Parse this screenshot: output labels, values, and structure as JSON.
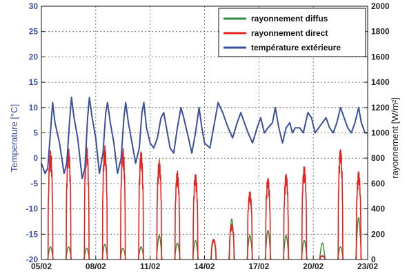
{
  "chart_data": {
    "type": "line",
    "xlabel": "",
    "ylabel_left": "Temperature [°C]",
    "ylabel_right": "rayonnement [W/m²]",
    "x_ticks": [
      "05/02",
      "08/02",
      "11/02",
      "14/02",
      "17/02",
      "20/02",
      "23/02"
    ],
    "x_range_days": [
      5,
      23
    ],
    "ylim_left": [
      -20,
      30
    ],
    "yticks_left": [
      -20,
      -15,
      -10,
      -5,
      0,
      5,
      10,
      15,
      20,
      25,
      30
    ],
    "ylim_right": [
      0,
      2000
    ],
    "yticks_right": [
      0,
      200,
      400,
      600,
      800,
      1000,
      1200,
      1400,
      1600,
      1800,
      2000
    ],
    "grid": true,
    "legend_position": "top-right",
    "colors": {
      "diffus": "#2e8b3a",
      "direct": "#e8231f",
      "temperature": "#3a4fa0"
    },
    "series": [
      {
        "name": "rayonnement diffus",
        "axis": "right",
        "daily_peaks": [
          {
            "day": 5.5,
            "value": 100
          },
          {
            "day": 6.5,
            "value": 100
          },
          {
            "day": 7.5,
            "value": 90
          },
          {
            "day": 8.5,
            "value": 120
          },
          {
            "day": 9.5,
            "value": 90
          },
          {
            "day": 10.5,
            "value": 100
          },
          {
            "day": 11.5,
            "value": 190
          },
          {
            "day": 12.5,
            "value": 130
          },
          {
            "day": 13.5,
            "value": 150
          },
          {
            "day": 14.5,
            "value": 160
          },
          {
            "day": 15.5,
            "value": 320
          },
          {
            "day": 16.5,
            "value": 190
          },
          {
            "day": 17.5,
            "value": 230
          },
          {
            "day": 18.5,
            "value": 190
          },
          {
            "day": 19.5,
            "value": 150
          },
          {
            "day": 20.5,
            "value": 130
          },
          {
            "day": 21.5,
            "value": 100
          },
          {
            "day": 22.5,
            "value": 330
          }
        ]
      },
      {
        "name": "rayonnement direct",
        "axis": "right",
        "daily_peaks": [
          {
            "day": 5.5,
            "value": 860
          },
          {
            "day": 6.5,
            "value": 880
          },
          {
            "day": 7.5,
            "value": 900
          },
          {
            "day": 8.5,
            "value": 900
          },
          {
            "day": 9.5,
            "value": 880
          },
          {
            "day": 10.5,
            "value": 860
          },
          {
            "day": 11.5,
            "value": 790
          },
          {
            "day": 12.5,
            "value": 700
          },
          {
            "day": 13.5,
            "value": 680
          },
          {
            "day": 14.5,
            "value": 160
          },
          {
            "day": 15.5,
            "value": 280
          },
          {
            "day": 16.5,
            "value": 540
          },
          {
            "day": 17.5,
            "value": 650
          },
          {
            "day": 18.5,
            "value": 680
          },
          {
            "day": 19.5,
            "value": 740
          },
          {
            "day": 20.5,
            "value": 30
          },
          {
            "day": 21.5,
            "value": 880
          },
          {
            "day": 22.5,
            "value": 700
          }
        ]
      },
      {
        "name": "température extérieure",
        "axis": "left",
        "points": [
          [
            5.0,
            -1
          ],
          [
            5.2,
            -3
          ],
          [
            5.35,
            -2
          ],
          [
            5.5,
            5
          ],
          [
            5.62,
            11
          ],
          [
            5.75,
            7
          ],
          [
            6.0,
            3
          ],
          [
            6.25,
            -3
          ],
          [
            6.4,
            -1
          ],
          [
            6.55,
            7
          ],
          [
            6.66,
            12
          ],
          [
            6.8,
            8
          ],
          [
            7.0,
            4
          ],
          [
            7.25,
            -4
          ],
          [
            7.4,
            -2
          ],
          [
            7.55,
            8
          ],
          [
            7.65,
            12
          ],
          [
            7.8,
            8
          ],
          [
            8.0,
            4
          ],
          [
            8.2,
            -3
          ],
          [
            8.4,
            1
          ],
          [
            8.55,
            9
          ],
          [
            8.65,
            11
          ],
          [
            8.8,
            7
          ],
          [
            9.0,
            3
          ],
          [
            9.2,
            -3
          ],
          [
            9.4,
            0
          ],
          [
            9.55,
            8
          ],
          [
            9.65,
            11
          ],
          [
            9.8,
            7
          ],
          [
            10.0,
            3
          ],
          [
            10.2,
            -1
          ],
          [
            10.4,
            2
          ],
          [
            10.55,
            9
          ],
          [
            10.65,
            11
          ],
          [
            10.8,
            6
          ],
          [
            11.0,
            3
          ],
          [
            11.2,
            2
          ],
          [
            11.4,
            4
          ],
          [
            11.6,
            8
          ],
          [
            11.75,
            9
          ],
          [
            11.9,
            6
          ],
          [
            12.1,
            2
          ],
          [
            12.3,
            1
          ],
          [
            12.5,
            6
          ],
          [
            12.7,
            10
          ],
          [
            12.85,
            8
          ],
          [
            13.05,
            5
          ],
          [
            13.3,
            1
          ],
          [
            13.5,
            5
          ],
          [
            13.7,
            10
          ],
          [
            13.85,
            6
          ],
          [
            14.0,
            3
          ],
          [
            14.3,
            2
          ],
          [
            14.5,
            6
          ],
          [
            14.75,
            11
          ],
          [
            15.0,
            9
          ],
          [
            15.3,
            6
          ],
          [
            15.55,
            4
          ],
          [
            15.8,
            7
          ],
          [
            16.0,
            9
          ],
          [
            16.2,
            7
          ],
          [
            16.4,
            5
          ],
          [
            16.65,
            3
          ],
          [
            16.9,
            6
          ],
          [
            17.1,
            8
          ],
          [
            17.3,
            5
          ],
          [
            17.5,
            6
          ],
          [
            17.75,
            7
          ],
          [
            17.9,
            10
          ],
          [
            18.1,
            6
          ],
          [
            18.3,
            3
          ],
          [
            18.5,
            6
          ],
          [
            18.7,
            7
          ],
          [
            18.85,
            5
          ],
          [
            19.0,
            6
          ],
          [
            19.25,
            6
          ],
          [
            19.45,
            5
          ],
          [
            19.7,
            9
          ],
          [
            19.9,
            8
          ],
          [
            20.1,
            5
          ],
          [
            20.3,
            6
          ],
          [
            20.5,
            7
          ],
          [
            20.7,
            8
          ],
          [
            20.9,
            6
          ],
          [
            21.1,
            5
          ],
          [
            21.3,
            7
          ],
          [
            21.5,
            10
          ],
          [
            21.7,
            8
          ],
          [
            21.9,
            6
          ],
          [
            22.1,
            5
          ],
          [
            22.3,
            7
          ],
          [
            22.5,
            10
          ],
          [
            22.65,
            7
          ],
          [
            22.85,
            5
          ],
          [
            23.0,
            5
          ]
        ]
      }
    ]
  }
}
